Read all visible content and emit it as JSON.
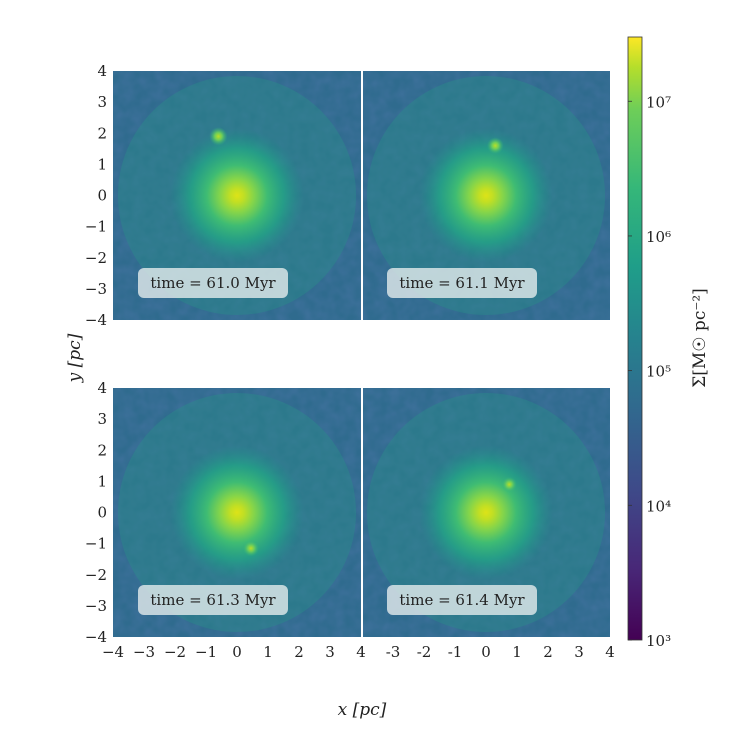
{
  "chart_data": {
    "type": "heatmap",
    "panels": [
      {
        "time_label": "time = 61.0 Myr",
        "center": [
          0,
          0
        ],
        "clump": [
          -0.6,
          1.9
        ],
        "clump_strength": 0.85
      },
      {
        "time_label": "time = 61.1 Myr",
        "center": [
          0,
          0
        ],
        "clump": [
          0.3,
          1.6
        ],
        "clump_strength": 0.7
      },
      {
        "time_label": "time = 61.3 Myr",
        "center": [
          0,
          0
        ],
        "clump": [
          0.45,
          -1.15
        ],
        "clump_strength": 0.65
      },
      {
        "time_label": "time = 61.4 Myr",
        "center": [
          0,
          0
        ],
        "clump": [
          0.75,
          0.9
        ],
        "clump_strength": 0.55
      }
    ],
    "xlim": [
      -4,
      4
    ],
    "ylim": [
      -4,
      4
    ],
    "xlabel": "x [pc]",
    "ylabel": "y [pc]",
    "y_ticks": [
      "4",
      "3",
      "2",
      "1",
      "0",
      "−1",
      "−2",
      "−3",
      "−4"
    ],
    "x_ticks_left": [
      "−4",
      "−3",
      "−2",
      "−1",
      "0",
      "1",
      "2",
      "3",
      "4"
    ],
    "x_ticks_right": [
      "-3",
      "-2",
      "-1",
      "0",
      "1",
      "2",
      "3",
      "4"
    ],
    "colorbar": {
      "label": "Σ[M☉ pc⁻²]",
      "scale": "log",
      "range": [
        1000,
        30000000
      ],
      "tick_labels": [
        "10⁷",
        "10⁶",
        "10⁵",
        "10⁴",
        "10³"
      ],
      "tick_values": [
        10000000,
        1000000,
        100000,
        10000,
        1000
      ],
      "colormap": "viridis"
    }
  }
}
